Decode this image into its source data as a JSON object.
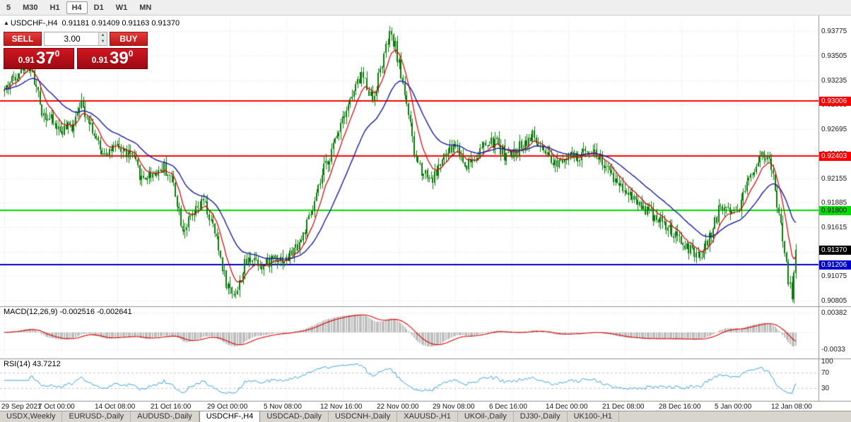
{
  "toolbar": {
    "timeframes": [
      {
        "label": "5",
        "active": false
      },
      {
        "label": "M30",
        "active": false
      },
      {
        "label": "H1",
        "active": false
      },
      {
        "label": "H4",
        "active": true
      },
      {
        "label": "D1",
        "active": false
      },
      {
        "label": "W1",
        "active": false
      },
      {
        "label": "MN",
        "active": false
      }
    ]
  },
  "chart_header": {
    "arrow": "▲",
    "symbol": "USDCHF-,H4",
    "ohlc": "0.91181 0.91409 0.91163 0.91370"
  },
  "trade_panel": {
    "sell_label": "SELL",
    "buy_label": "BUY",
    "volume": "3.00",
    "spinner_up": "▲",
    "spinner_down": "▼",
    "bid": {
      "prefix": "0.91",
      "big": "37",
      "sup": "0"
    },
    "ask": {
      "prefix": "0.91",
      "big": "39",
      "sup": "0"
    }
  },
  "price_axis": {
    "labels": [
      {
        "text": "0.93775",
        "price": 0.93775
      },
      {
        "text": "0.93505",
        "price": 0.93505
      },
      {
        "text": "0.93235",
        "price": 0.93235
      },
      {
        "text": "0.92965",
        "price": 0.92965
      },
      {
        "text": "0.92695",
        "price": 0.92695
      },
      {
        "text": "0.92425",
        "price": 0.92425
      },
      {
        "text": "0.92155",
        "price": 0.92155
      },
      {
        "text": "0.91885",
        "price": 0.91885
      },
      {
        "text": "0.91615",
        "price": 0.91615
      },
      {
        "text": "0.91345",
        "price": 0.91345
      },
      {
        "text": "0.91075",
        "price": 0.91075
      },
      {
        "text": "0.90805",
        "price": 0.90805
      }
    ]
  },
  "levels": [
    {
      "text": "0.93006",
      "price": 0.93006,
      "color": "#ff0000",
      "text_color": "#ffffff",
      "line": true
    },
    {
      "text": "0.92403",
      "price": 0.92403,
      "color": "#ff0000",
      "text_color": "#ffffff",
      "line": true
    },
    {
      "text": "0.91800",
      "price": 0.918,
      "color": "#00dd00",
      "text_color": "#000000",
      "line": true
    },
    {
      "text": "0.91370",
      "price": 0.9137,
      "color": "#000000",
      "text_color": "#ffffff",
      "line": false
    },
    {
      "text": "0.91206",
      "price": 0.91206,
      "color": "#0000cc",
      "text_color": "#ffffff",
      "line": true
    }
  ],
  "macd_panel": {
    "label": "MACD(12,26,9) -0.002516 -0.002641",
    "axis": [
      {
        "text": "0.00382",
        "value": 0.00382
      },
      {
        "text": "-0.0033",
        "value": -0.0033
      }
    ]
  },
  "rsi_panel": {
    "label": "RSI(14) 43.7212",
    "axis": [
      {
        "text": "100",
        "value": 100
      },
      {
        "text": "70",
        "value": 70
      },
      {
        "text": "30",
        "value": 30
      }
    ],
    "levels": [
      70,
      30
    ]
  },
  "time_axis": [
    {
      "text": "29 Sep 2021",
      "bar": 0
    },
    {
      "text": "7 Oct 00:00",
      "bar": 30
    },
    {
      "text": "14 Oct 08:00",
      "bar": 60
    },
    {
      "text": "21 Oct 16:00",
      "bar": 90
    },
    {
      "text": "29 Oct 00:00",
      "bar": 120
    },
    {
      "text": "5 Nov 08:00",
      "bar": 150
    },
    {
      "text": "12 Nov 16:00",
      "bar": 180
    },
    {
      "text": "22 Nov 00:00",
      "bar": 210
    },
    {
      "text": "29 Nov 08:00",
      "bar": 240
    },
    {
      "text": "6 Dec 16:00",
      "bar": 270
    },
    {
      "text": "14 Dec 00:00",
      "bar": 300
    },
    {
      "text": "21 Dec 08:00",
      "bar": 330
    },
    {
      "text": "28 Dec 16:00",
      "bar": 360
    },
    {
      "text": "5 Jan 00:00",
      "bar": 390
    },
    {
      "text": "12 Jan 08:00",
      "bar": 420
    }
  ],
  "tabs": [
    {
      "label": "USDX,Weekly",
      "active": false
    },
    {
      "label": "EURUSD-,Daily",
      "active": false
    },
    {
      "label": "AUDUSD-,Daily",
      "active": false
    },
    {
      "label": "USDCHF-,H4",
      "active": true
    },
    {
      "label": "USDCAD-,Daily",
      "active": false
    },
    {
      "label": "USDCNH-,Daily",
      "active": false
    },
    {
      "label": "XAUUSD-,H1",
      "active": false
    },
    {
      "label": "UKOil-,Daily",
      "active": false
    },
    {
      "label": "DJ30-,Daily",
      "active": false
    },
    {
      "label": "UK100-,H1",
      "active": false
    }
  ],
  "chart_data": {
    "type": "candlestick",
    "symbol": "USDCHF-",
    "timeframe": "H4",
    "ohlc": {
      "open": 0.91181,
      "high": 0.91409,
      "low": 0.91163,
      "close": 0.9137
    },
    "bars": 422,
    "seed": 42,
    "noise": 0.0007,
    "wick": 0.0008,
    "candle_color": "#0b7a0b",
    "grid_color": "#dedede",
    "anchors": [
      [
        0,
        0.9312
      ],
      [
        6,
        0.933
      ],
      [
        13,
        0.9345
      ],
      [
        20,
        0.929
      ],
      [
        30,
        0.9268
      ],
      [
        36,
        0.9272
      ],
      [
        40,
        0.93
      ],
      [
        45,
        0.9282
      ],
      [
        51,
        0.9245
      ],
      [
        60,
        0.9248
      ],
      [
        68,
        0.924
      ],
      [
        73,
        0.9215
      ],
      [
        80,
        0.9222
      ],
      [
        85,
        0.9228
      ],
      [
        90,
        0.921
      ],
      [
        95,
        0.916
      ],
      [
        100,
        0.9172
      ],
      [
        106,
        0.919
      ],
      [
        112,
        0.9155
      ],
      [
        118,
        0.91
      ],
      [
        121,
        0.909
      ],
      [
        124,
        0.9092
      ],
      [
        128,
        0.912
      ],
      [
        132,
        0.913
      ],
      [
        138,
        0.9118
      ],
      [
        144,
        0.913
      ],
      [
        150,
        0.9125
      ],
      [
        158,
        0.9148
      ],
      [
        164,
        0.918
      ],
      [
        170,
        0.9225
      ],
      [
        175,
        0.925
      ],
      [
        180,
        0.9285
      ],
      [
        185,
        0.9305
      ],
      [
        190,
        0.933
      ],
      [
        193,
        0.9318
      ],
      [
        196,
        0.9302
      ],
      [
        200,
        0.9335
      ],
      [
        205,
        0.9372
      ],
      [
        208,
        0.936
      ],
      [
        210,
        0.934
      ],
      [
        214,
        0.93
      ],
      [
        218,
        0.9242
      ],
      [
        222,
        0.9225
      ],
      [
        228,
        0.9215
      ],
      [
        233,
        0.9235
      ],
      [
        240,
        0.9253
      ],
      [
        245,
        0.923
      ],
      [
        250,
        0.9238
      ],
      [
        256,
        0.9252
      ],
      [
        262,
        0.9255
      ],
      [
        266,
        0.9242
      ],
      [
        270,
        0.924
      ],
      [
        275,
        0.9252
      ],
      [
        281,
        0.9262
      ],
      [
        286,
        0.9245
      ],
      [
        292,
        0.923
      ],
      [
        296,
        0.9238
      ],
      [
        300,
        0.9242
      ],
      [
        305,
        0.9235
      ],
      [
        311,
        0.925
      ],
      [
        316,
        0.924
      ],
      [
        322,
        0.922
      ],
      [
        326,
        0.9212
      ],
      [
        330,
        0.9205
      ],
      [
        336,
        0.9192
      ],
      [
        342,
        0.918
      ],
      [
        348,
        0.9172
      ],
      [
        353,
        0.916
      ],
      [
        357,
        0.915
      ],
      [
        360,
        0.9145
      ],
      [
        364,
        0.9138
      ],
      [
        368,
        0.9128
      ],
      [
        371,
        0.9132
      ],
      [
        375,
        0.915
      ],
      [
        381,
        0.9185
      ],
      [
        390,
        0.918
      ],
      [
        394,
        0.9205
      ],
      [
        400,
        0.9232
      ],
      [
        403,
        0.9245
      ],
      [
        405,
        0.924
      ],
      [
        408,
        0.9228
      ],
      [
        410,
        0.92
      ],
      [
        413,
        0.9165
      ],
      [
        415,
        0.913
      ],
      [
        417,
        0.9105
      ],
      [
        418,
        0.9096
      ],
      [
        419,
        0.9088
      ],
      [
        420,
        0.911
      ],
      [
        421,
        0.9137
      ]
    ],
    "indicators": {
      "ma_fast": {
        "type": "ema",
        "period": 9,
        "color": "#cc0000"
      },
      "ma_slow": {
        "type": "ema",
        "period": 30,
        "color": "#1a1aa6"
      },
      "macd": {
        "fast": 12,
        "slow": 26,
        "signal": 9,
        "histogram_color": "#bdbdbd",
        "signal_color": "#dd0000",
        "current": "-0.002516 -0.002641"
      },
      "rsi": {
        "period": 14,
        "color": "#3aa0dc",
        "current": 43.7212
      }
    }
  }
}
